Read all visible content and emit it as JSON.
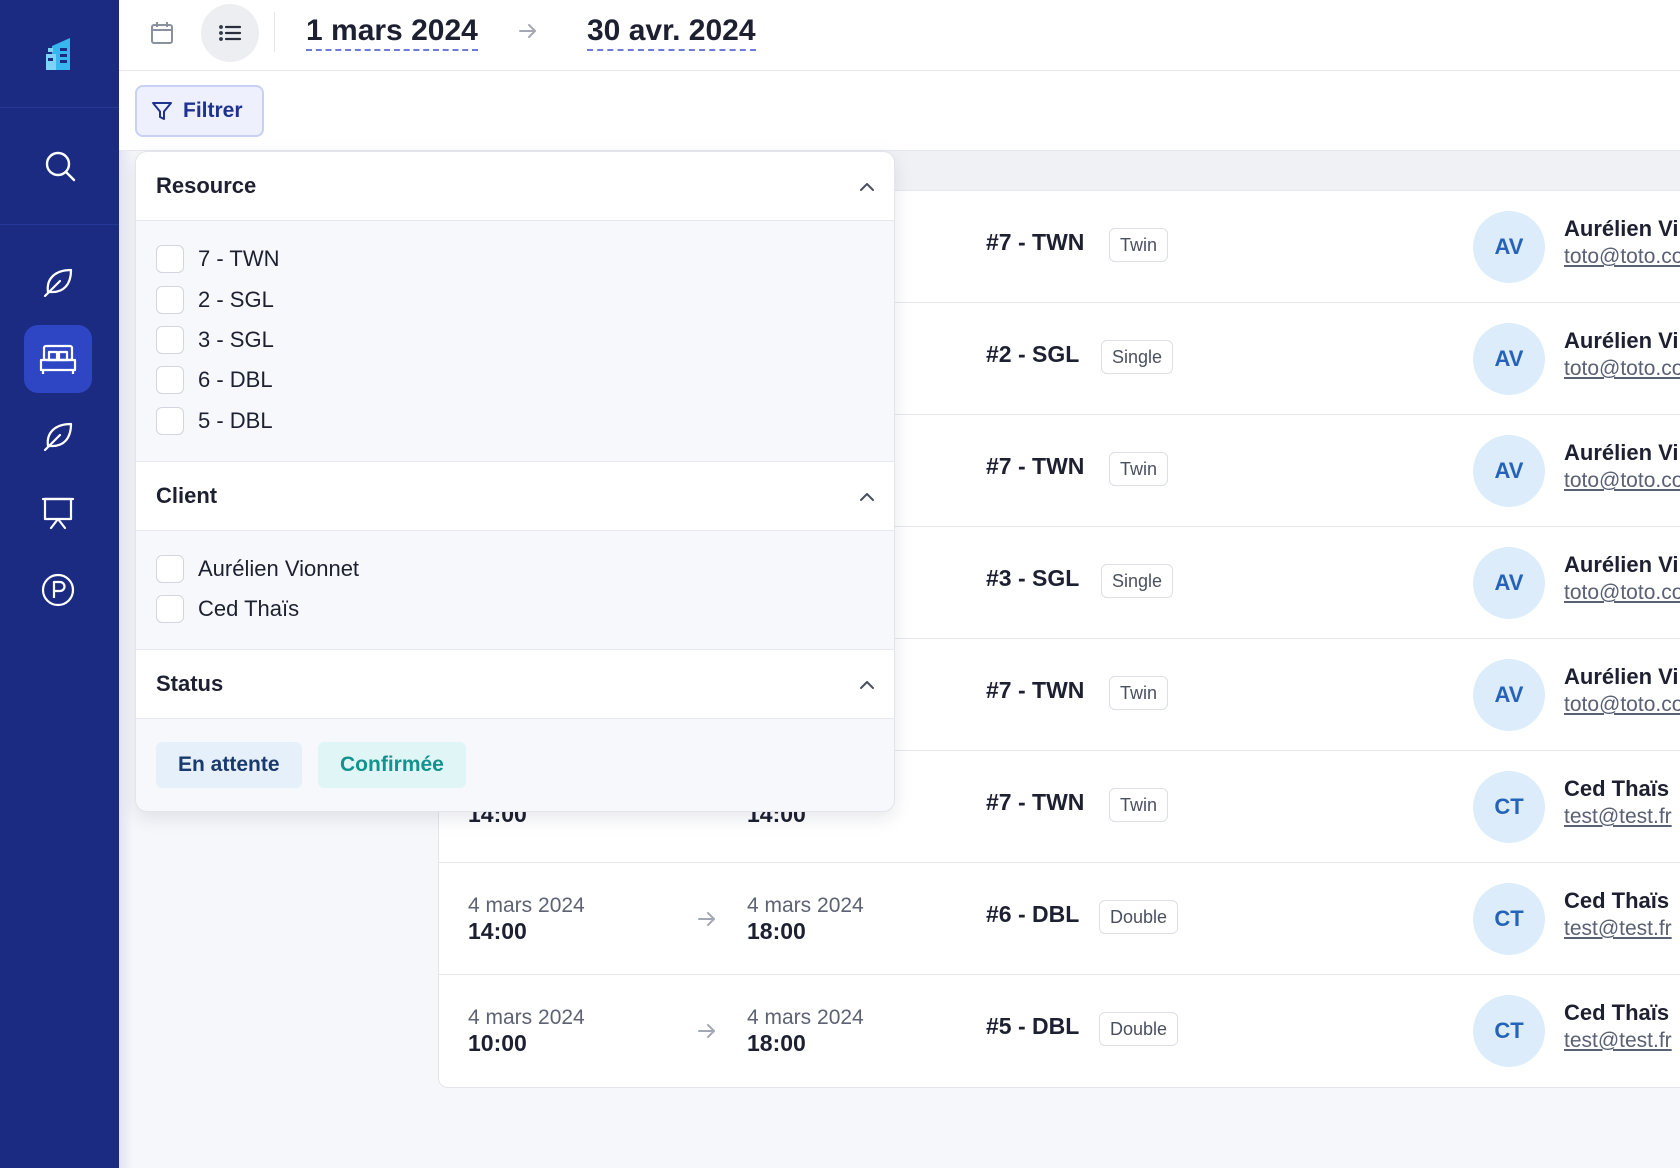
{
  "sidebar": {
    "logo_icon": "building-logo-icon",
    "search_icon": "search-icon",
    "items": [
      {
        "icon": "leaf-icon",
        "active": false
      },
      {
        "icon": "bed-icon",
        "active": true
      },
      {
        "icon": "leaf-icon",
        "active": false
      },
      {
        "icon": "presentation-board-icon",
        "active": false
      },
      {
        "icon": "parking-icon",
        "active": false
      }
    ]
  },
  "topbar": {
    "calendar_view_icon": "calendar-icon",
    "list_view_icon": "list-icon",
    "date_from": "1 mars 2024",
    "date_to": "30 avr. 2024"
  },
  "filter_button": {
    "label": "Filtrer",
    "icon": "filter-icon"
  },
  "filter_panel": {
    "resource": {
      "title": "Resource",
      "options": [
        "7 - TWN",
        "2 - SGL",
        "3 - SGL",
        "6 - DBL",
        "5 - DBL"
      ]
    },
    "client": {
      "title": "Client",
      "options": [
        "Aurélien Vionnet",
        "Ced Thaïs"
      ]
    },
    "status": {
      "title": "Status",
      "chips": [
        {
          "label": "En attente",
          "bg": "#e6f0fb",
          "color": "#1a3a6e"
        },
        {
          "label": "Confirmée",
          "bg": "#e0f6f6",
          "color": "#14938e"
        }
      ]
    }
  },
  "bookings": [
    {
      "room": "#7 - TWN",
      "type": "Twin",
      "initials": "AV",
      "name": "Aurélien Vi",
      "email": "toto@toto.co"
    },
    {
      "room": "#2 - SGL",
      "type": "Single",
      "initials": "AV",
      "name": "Aurélien Vi",
      "email": "toto@toto.co"
    },
    {
      "room": "#7 - TWN",
      "type": "Twin",
      "initials": "AV",
      "name": "Aurélien Vi",
      "email": "toto@toto.co"
    },
    {
      "room": "#3 - SGL",
      "type": "Single",
      "initials": "AV",
      "name": "Aurélien Vi",
      "email": "toto@toto.co"
    },
    {
      "room": "#7 - TWN",
      "type": "Twin",
      "initials": "AV",
      "name": "Aurélien Vi",
      "email": "toto@toto.co"
    },
    {
      "start_time": "14:00",
      "end_time": "14:00",
      "room": "#7 - TWN",
      "type": "Twin",
      "initials": "CT",
      "name": "Ced Thaïs",
      "email": "test@test.fr"
    },
    {
      "start_date": "4 mars 2024",
      "start_time": "14:00",
      "end_date": "4 mars 2024",
      "end_time": "18:00",
      "room": "#6 - DBL",
      "type": "Double",
      "initials": "CT",
      "name": "Ced Thaïs",
      "email": "test@test.fr"
    },
    {
      "start_date": "4 mars 2024",
      "start_time": "10:00",
      "end_date": "4 mars 2024",
      "end_time": "18:00",
      "room": "#5 - DBL",
      "type": "Double",
      "initials": "CT",
      "name": "Ced Thaïs",
      "email": "test@test.fr"
    }
  ]
}
